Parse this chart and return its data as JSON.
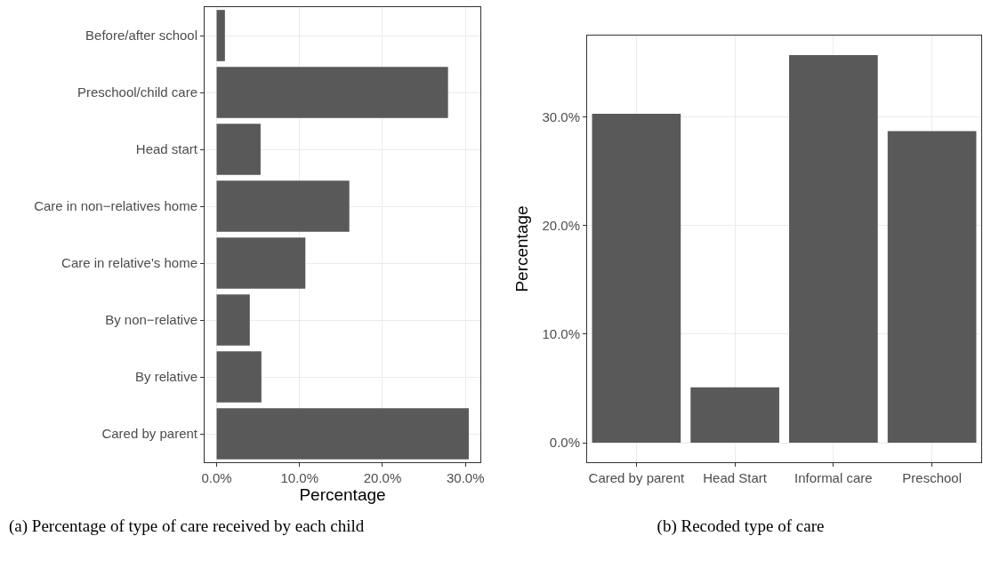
{
  "chart_data": [
    {
      "type": "bar",
      "orientation": "horizontal",
      "categories": [
        "Before/after school",
        "Preschool/child care",
        "Head start",
        "Care in non−relatives home",
        "Care in relative's home",
        "By non−relative",
        "By relative",
        "Cared by parent"
      ],
      "values": [
        1.0,
        27.9,
        5.3,
        16.0,
        10.7,
        4.0,
        5.4,
        30.4
      ],
      "color": "#595959",
      "xlabel": "Percentage",
      "xlim": [
        -1.45,
        31.8
      ],
      "xticks": [
        {
          "value": 0,
          "label": "0.0%"
        },
        {
          "value": 10,
          "label": "10.0%"
        },
        {
          "value": 20,
          "label": "20.0%"
        },
        {
          "value": 30,
          "label": "30.0%"
        }
      ],
      "grid": true,
      "legend": false,
      "annotations": [
        "(a) Percentage of type of care received by each child"
      ]
    },
    {
      "type": "bar",
      "categories": [
        "Cared by parent",
        "Head Start",
        "Informal care",
        "Preschool"
      ],
      "values": [
        30.3,
        5.1,
        35.7,
        28.7
      ],
      "color": "#595959",
      "ylabel": "Percentage",
      "ylim": [
        -1.8,
        37.5
      ],
      "yticks": [
        {
          "value": 0,
          "label": "0.0%"
        },
        {
          "value": 10,
          "label": "10.0%"
        },
        {
          "value": 20,
          "label": "20.0%"
        },
        {
          "value": 30,
          "label": "30.0%"
        }
      ],
      "grid": true,
      "legend": false,
      "annotations": [
        "(b) Recoded type of care"
      ]
    }
  ]
}
